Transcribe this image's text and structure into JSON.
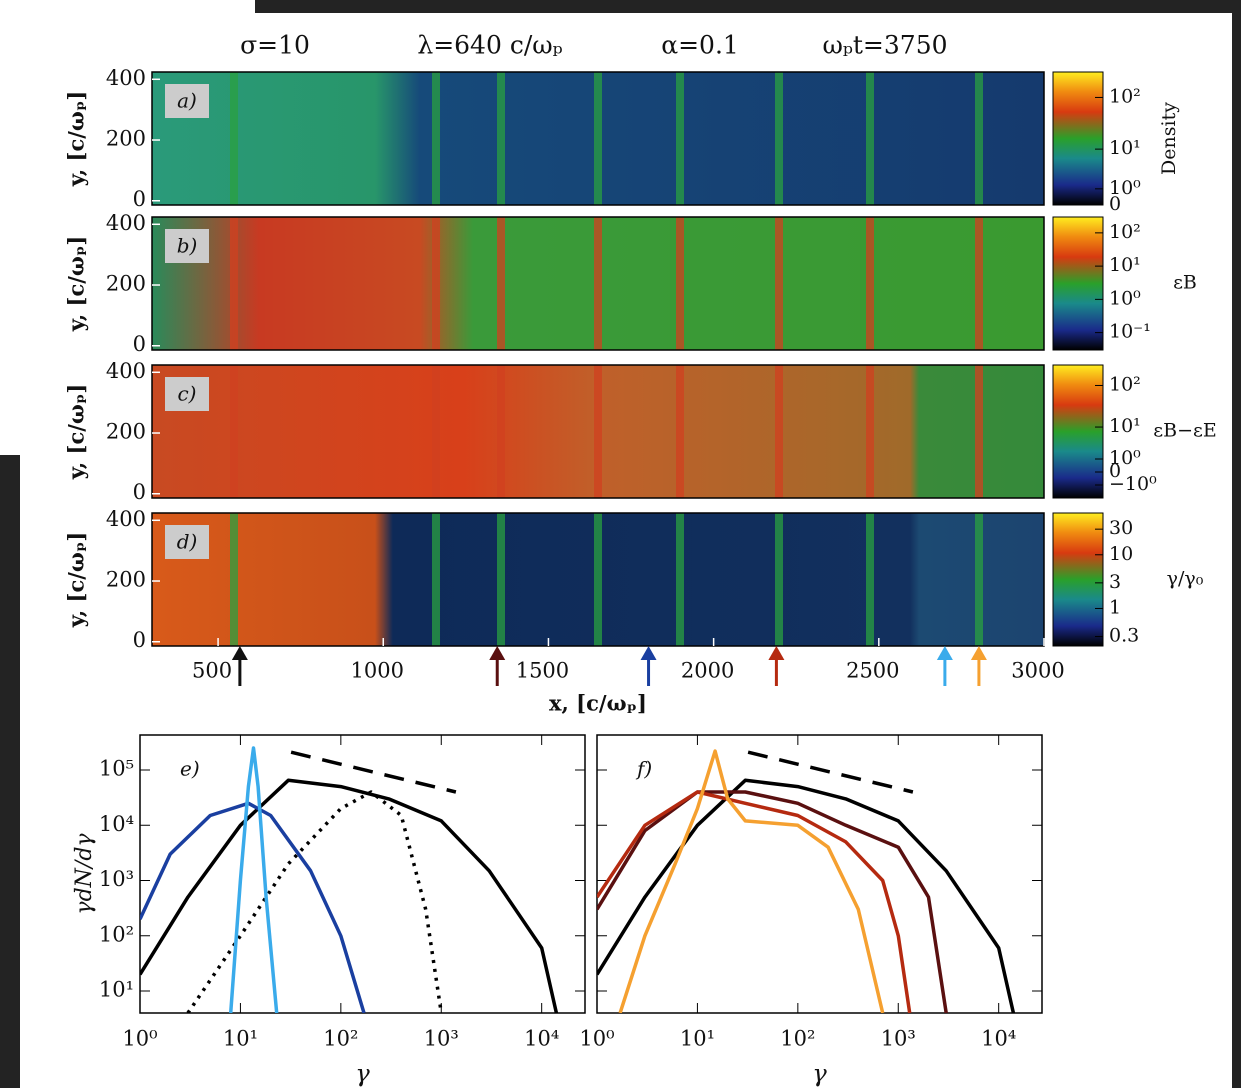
{
  "header": [
    "σ=10",
    "λ=640  c/ωₚ",
    "α=0.1",
    "ωₚt=3750"
  ],
  "chart_data": [
    {
      "type": "heatmap",
      "label": "a)",
      "ylabel": "y, [c/ωₚ]",
      "ylim": [
        -14,
        424
      ],
      "yticks": [
        0,
        200,
        400
      ],
      "colorbar": {
        "label": "Density",
        "scale": "symlog",
        "lim": [
          0,
          300
        ],
        "ticks": [
          {
            "value": 100,
            "label": "10²"
          },
          {
            "value": 10,
            "label": "10¹"
          },
          {
            "value": 1,
            "label": "10⁰"
          },
          0
        ]
      }
    },
    {
      "type": "heatmap",
      "label": "b)",
      "ylabel": "y, [c/ωₚ]",
      "ylim": [
        -14,
        424
      ],
      "yticks": [
        0,
        200,
        400
      ],
      "colorbar": {
        "label": "εB",
        "scale": "log",
        "lim": [
          0.03,
          300
        ],
        "ticks": [
          {
            "value": 100,
            "label": "10²"
          },
          {
            "value": 10,
            "label": "10¹"
          },
          {
            "value": 1,
            "label": "10⁰"
          },
          {
            "value": 0.1,
            "label": "10⁻¹"
          }
        ]
      }
    },
    {
      "type": "heatmap",
      "label": "c)",
      "ylabel": "y, [c/ωₚ]",
      "ylim": [
        -14,
        424
      ],
      "yticks": [
        0,
        200,
        400
      ],
      "colorbar": {
        "label": "εB−εE",
        "scale": "symlog",
        "lim": [
          -3,
          300
        ],
        "ticks": [
          {
            "value": 100,
            "label": "10²"
          },
          {
            "value": 10,
            "label": "10¹"
          },
          {
            "value": 1,
            "label": "10⁰"
          },
          0,
          {
            "value": -1,
            "label": "−10⁰"
          }
        ]
      }
    },
    {
      "type": "heatmap",
      "label": "d)",
      "ylabel": "y, [c/ωₚ]",
      "ylim": [
        -14,
        424
      ],
      "yticks": [
        0,
        200,
        400
      ],
      "colorbar": {
        "label": "γ/γ₀",
        "scale": "log",
        "lim": [
          0.2,
          60
        ],
        "ticks": [
          30,
          10,
          3,
          1,
          0.3
        ]
      },
      "xlabel": "x, [c/ωₚ]",
      "xlim": [
        300,
        3000
      ],
      "xticks": [
        500,
        1000,
        1500,
        2000,
        2500,
        3000
      ],
      "arrows": [
        {
          "x": 566,
          "color": "#111111"
        },
        {
          "x": 1345,
          "color": "#5a1010"
        },
        {
          "x": 1803,
          "color": "#1a3fa0"
        },
        {
          "x": 2190,
          "color": "#b52a10"
        },
        {
          "x": 2700,
          "color": "#3aabeb"
        },
        {
          "x": 2803,
          "color": "#f5a030"
        }
      ]
    },
    {
      "type": "line",
      "label": "e)",
      "ylabel": "γdN/dγ",
      "xlabel": "γ",
      "log": true,
      "xlim": [
        1,
        27000
      ],
      "ylim": [
        4,
        430000
      ],
      "xticks": [
        {
          "value": 1,
          "label": "10⁰"
        },
        {
          "value": 10,
          "label": "10¹"
        },
        {
          "value": 100,
          "label": "10²"
        },
        {
          "value": 1000,
          "label": "10³"
        },
        {
          "value": 10000,
          "label": "10⁴"
        }
      ],
      "yticks": [
        {
          "value": 10,
          "label": "10¹"
        },
        {
          "value": 100,
          "label": "10²"
        },
        {
          "value": 1000,
          "label": "10³"
        },
        {
          "value": 10000,
          "label": "10⁴"
        },
        {
          "value": 100000,
          "label": "10⁵"
        }
      ],
      "series": [
        {
          "color": "#000000",
          "style": "solid",
          "x": [
            1,
            3,
            10,
            30,
            100,
            300,
            1000,
            3000,
            10000,
            14000
          ],
          "values": [
            20,
            500,
            10000,
            65000,
            50000,
            30000,
            12000,
            1500,
            60,
            4
          ]
        },
        {
          "color": "#000000",
          "style": "dotted",
          "x": [
            3,
            10,
            30,
            100,
            200,
            400,
            700,
            1000
          ],
          "values": [
            4,
            100,
            2000,
            20000,
            40000,
            15000,
            300,
            4
          ]
        },
        {
          "color": "#1a3fa0",
          "style": "solid",
          "x": [
            1,
            2,
            5,
            12,
            20,
            50,
            100,
            170
          ],
          "values": [
            200,
            3000,
            15000,
            25000,
            15000,
            1500,
            100,
            4
          ]
        },
        {
          "color": "#3aabeb",
          "style": "solid",
          "x": [
            8,
            10,
            12,
            13.5,
            15,
            18,
            23
          ],
          "values": [
            4,
            1000,
            50000,
            250000,
            50000,
            500,
            4
          ]
        },
        {
          "color": "#000000",
          "style": "dashed",
          "x": [
            32,
            1400
          ],
          "values": [
            210000,
            40000
          ]
        }
      ]
    },
    {
      "type": "line",
      "label": "f)",
      "xlabel": "γ",
      "log": true,
      "xlim": [
        1,
        27000
      ],
      "ylim": [
        4,
        430000
      ],
      "xticks": [
        {
          "value": 1,
          "label": "10⁰"
        },
        {
          "value": 10,
          "label": "10¹"
        },
        {
          "value": 100,
          "label": "10²"
        },
        {
          "value": 1000,
          "label": "10³"
        },
        {
          "value": 10000,
          "label": "10⁴"
        }
      ],
      "yticks": [
        10,
        100,
        1000,
        10000,
        100000
      ],
      "series": [
        {
          "color": "#000000",
          "style": "solid",
          "x": [
            1,
            3,
            10,
            30,
            100,
            300,
            1000,
            3000,
            10000,
            14000
          ],
          "values": [
            20,
            500,
            10000,
            65000,
            50000,
            30000,
            12000,
            1500,
            60,
            4
          ]
        },
        {
          "color": "#5a1010",
          "style": "solid",
          "x": [
            1,
            3,
            10,
            30,
            100,
            300,
            1000,
            2000,
            3000
          ],
          "values": [
            300,
            8000,
            40000,
            40000,
            25000,
            10000,
            4000,
            500,
            4
          ]
        },
        {
          "color": "#b52a10",
          "style": "solid",
          "x": [
            1,
            3,
            10,
            30,
            100,
            300,
            700,
            1000,
            1300
          ],
          "values": [
            500,
            10000,
            40000,
            25000,
            15000,
            5000,
            1000,
            100,
            4
          ]
        },
        {
          "color": "#f5a030",
          "style": "solid",
          "x": [
            1.7,
            3,
            6,
            10,
            15,
            20,
            30,
            100,
            200,
            400,
            700
          ],
          "values": [
            4,
            100,
            2000,
            20000,
            220000,
            30000,
            12000,
            10000,
            4000,
            300,
            4
          ]
        },
        {
          "color": "#000000",
          "style": "dashed",
          "x": [
            32,
            1400
          ],
          "values": [
            210000,
            40000
          ]
        }
      ]
    }
  ]
}
